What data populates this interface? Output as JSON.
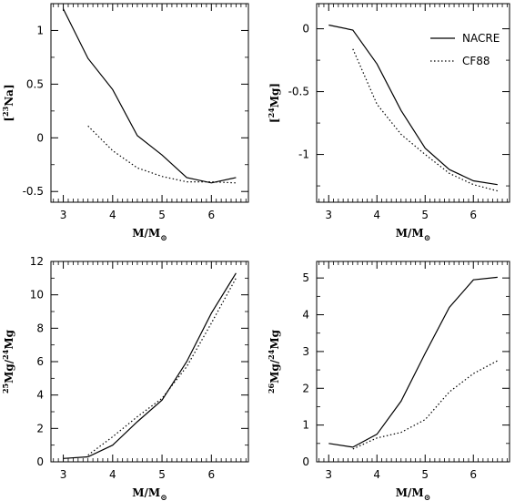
{
  "chart_data": [
    {
      "type": "line",
      "xlabel": "M/M",
      "xlabel_sub": "⊙",
      "ylabel_pre": "[",
      "ylabel_sup": "23",
      "ylabel_main": "Na]",
      "xlim": [
        2.75,
        6.75
      ],
      "ylim": [
        -0.6,
        1.25
      ],
      "xticks": [
        3,
        4,
        5,
        6
      ],
      "yticks": [
        -0.5,
        0,
        0.5,
        1
      ],
      "ytick_labels": [
        "-0.5",
        "0",
        "0.5",
        "1"
      ],
      "series": [
        {
          "name": "NACRE",
          "style": "solid",
          "x": [
            3.0,
            3.5,
            4.0,
            4.5,
            5.0,
            5.5,
            6.0,
            6.5
          ],
          "y": [
            1.2,
            0.74,
            0.45,
            0.02,
            -0.16,
            -0.37,
            -0.42,
            -0.37
          ]
        },
        {
          "name": "CF88",
          "style": "dotted",
          "x": [
            3.5,
            4.0,
            4.5,
            5.0,
            5.5,
            6.0,
            6.5
          ],
          "y": [
            0.11,
            -0.12,
            -0.28,
            -0.36,
            -0.41,
            -0.41,
            -0.42
          ]
        }
      ]
    },
    {
      "type": "line",
      "xlabel": "M/M",
      "xlabel_sub": "⊙",
      "ylabel_pre": "[",
      "ylabel_sup": "24",
      "ylabel_main": "Mg]",
      "xlim": [
        2.75,
        6.75
      ],
      "ylim": [
        -1.38,
        0.2
      ],
      "xticks": [
        3,
        4,
        5,
        6
      ],
      "yticks": [
        -1,
        -0.5,
        0
      ],
      "ytick_labels": [
        "-1",
        "-0.5",
        "0"
      ],
      "legend": {
        "placement": "top-right",
        "entries": [
          "NACRE",
          "CF88"
        ]
      },
      "series": [
        {
          "name": "NACRE",
          "style": "solid",
          "x": [
            3.0,
            3.5,
            4.0,
            4.5,
            5.0,
            5.5,
            6.0,
            6.5
          ],
          "y": [
            0.03,
            -0.01,
            -0.28,
            -0.65,
            -0.95,
            -1.12,
            -1.21,
            -1.24
          ]
        },
        {
          "name": "CF88",
          "style": "dotted",
          "x": [
            3.5,
            4.0,
            4.5,
            5.0,
            5.5,
            6.0,
            6.5
          ],
          "y": [
            -0.16,
            -0.6,
            -0.84,
            -1.0,
            -1.15,
            -1.24,
            -1.29
          ]
        }
      ]
    },
    {
      "type": "line",
      "xlabel": "M/M",
      "xlabel_sub": "⊙",
      "ylabel_pre": "",
      "ylabel_sup": "25",
      "ylabel_main": "Mg/",
      "ylabel_sup2": "24",
      "ylabel_main2": "Mg",
      "xlim": [
        2.75,
        6.75
      ],
      "ylim": [
        0,
        12
      ],
      "xticks": [
        3,
        4,
        5,
        6
      ],
      "yticks": [
        0,
        2,
        4,
        6,
        8,
        10,
        12
      ],
      "ytick_labels": [
        "0",
        "2",
        "4",
        "6",
        "8",
        "10",
        "12"
      ],
      "series": [
        {
          "name": "NACRE",
          "style": "solid",
          "x": [
            3.0,
            3.5,
            4.0,
            4.5,
            5.0,
            5.5,
            6.0,
            6.5
          ],
          "y": [
            0.2,
            0.3,
            1.0,
            2.4,
            3.7,
            6.0,
            8.9,
            11.3
          ]
        },
        {
          "name": "CF88",
          "style": "dotted",
          "x": [
            3.5,
            4.0,
            4.5,
            5.0,
            5.5,
            6.0,
            6.5
          ],
          "y": [
            0.4,
            1.5,
            2.7,
            3.8,
            5.7,
            8.3,
            11.0
          ]
        }
      ]
    },
    {
      "type": "line",
      "xlabel": "M/M",
      "xlabel_sub": "⊙",
      "ylabel_pre": "",
      "ylabel_sup": "26",
      "ylabel_main": "Mg/",
      "ylabel_sup2": "24",
      "ylabel_main2": "Mg",
      "xlim": [
        2.75,
        6.75
      ],
      "ylim": [
        0,
        5.45
      ],
      "xticks": [
        3,
        4,
        5,
        6
      ],
      "yticks": [
        0,
        1,
        2,
        3,
        4,
        5
      ],
      "ytick_labels": [
        "0",
        "1",
        "2",
        "3",
        "4",
        "5"
      ],
      "series": [
        {
          "name": "NACRE",
          "style": "solid",
          "x": [
            3.0,
            3.5,
            4.0,
            4.5,
            5.0,
            5.5,
            6.0,
            6.5
          ],
          "y": [
            0.5,
            0.4,
            0.75,
            1.65,
            2.95,
            4.2,
            4.95,
            5.02
          ]
        },
        {
          "name": "CF88",
          "style": "dotted",
          "x": [
            3.5,
            4.0,
            4.5,
            5.0,
            5.5,
            6.0,
            6.5
          ],
          "y": [
            0.35,
            0.65,
            0.8,
            1.15,
            1.9,
            2.4,
            2.75
          ]
        }
      ]
    }
  ]
}
